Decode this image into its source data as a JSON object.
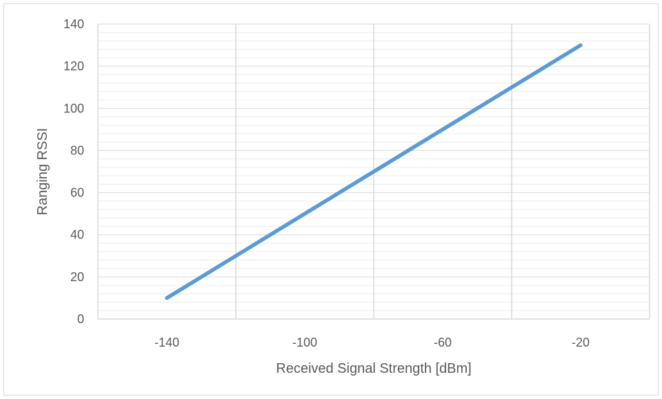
{
  "chart_data": {
    "type": "line",
    "title": "",
    "xlabel": "Received Signal Strength [dBm]",
    "ylabel": "Ranging RSSI",
    "xlim": [
      -160,
      0
    ],
    "ylim": [
      0,
      140
    ],
    "x_major_ticks": [
      -140,
      -100,
      -60,
      -20
    ],
    "x_gridlines": [
      -160,
      -120,
      -80,
      -40,
      0
    ],
    "y_ticks": [
      0,
      20,
      40,
      60,
      80,
      100,
      120,
      140
    ],
    "y_minor_step": 4,
    "grid": true,
    "legend": "none",
    "series": [
      {
        "color": "#5b9bd5",
        "x": [
          -140,
          -120,
          -100,
          -80,
          -60,
          -40,
          -20
        ],
        "y": [
          10,
          30,
          50,
          70,
          90,
          110,
          130
        ]
      }
    ],
    "tick_labels_x": [
      "-140",
      "-100",
      "-60",
      "-20"
    ],
    "tick_labels_y": [
      "0",
      "20",
      "40",
      "60",
      "80",
      "100",
      "120",
      "140"
    ]
  }
}
